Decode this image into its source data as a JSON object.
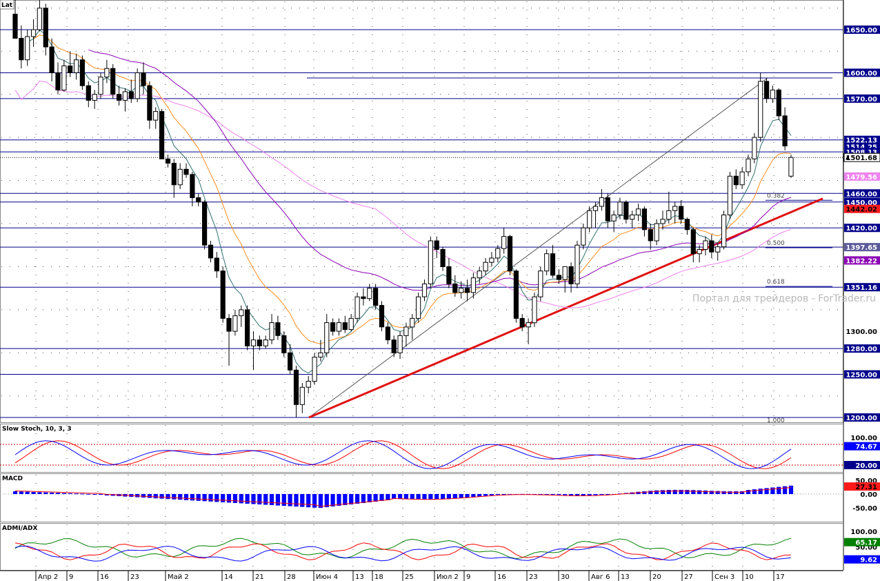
{
  "symbol_label": "Lat",
  "watermark": "Портал для трейдеров - ForTrader.ru",
  "colors": {
    "background": "#ffffff",
    "grid": "#444444",
    "hline": "#00008b",
    "candle_up_fill": "#ffffff",
    "candle_down_fill": "#000000",
    "ma_fast": "#2e6e6e",
    "ma_mid": "#ff8c1a",
    "ma_slow": "#8b00b5",
    "ma_pink": "#ee82ee",
    "trendline": "#e01010",
    "fib_line": "#222222",
    "stoch_main": "#0000ff",
    "stoch_signal": "#ff0000",
    "macd_hist": "#0000ff",
    "macd_signal": "#ff0000",
    "adx_plus": "#008000",
    "adx_minus": "#ff0000",
    "adx_line": "#0000ff"
  },
  "chart_data": {
    "type": "candlestick",
    "x_ticks": [
      "Апр 2",
      "9",
      "16",
      "23",
      "Май 2",
      "14",
      "21",
      "28",
      "Июн 4",
      "13",
      "18",
      "25",
      "Июл 2",
      "9",
      "16",
      "23",
      "30",
      "Авг 6",
      "13",
      "20",
      "27",
      "Сен 3",
      "10",
      "17"
    ],
    "price_axis": {
      "min": 1200,
      "max": 1680,
      "tick_labels": [
        "1200.00",
        "1250.00",
        "1280.00",
        "1300.00",
        "1351.16",
        "1397.65",
        "1420.00",
        "1442.02",
        "1450.00",
        "1460.00",
        "1479.56",
        "1501.68",
        "1508.13",
        "1514.25",
        "1522.13",
        "1570.00",
        "1600.00",
        "1650.00"
      ],
      "horizontal_levels": [
        1650,
        1600,
        1570,
        1522.13,
        1508.13,
        1460,
        1450,
        1420,
        1397.65,
        1351.16,
        1280,
        1250,
        1200
      ],
      "current_price": "1501.68",
      "badges": [
        {
          "label": "1479.56",
          "value": 1479.56,
          "color": "#ee82ee",
          "text_color": "#ffffff"
        },
        {
          "label": "1442.02",
          "value": 1442.02,
          "color": "#ff1a1a",
          "text_color": "#000000"
        },
        {
          "label": "1397.65",
          "value": 1397.65,
          "color": "#5a5a9a",
          "text_color": "#ffffff"
        },
        {
          "label": "1382.22",
          "value": 1382.22,
          "color": "#8b00b5",
          "text_color": "#ffffff"
        }
      ]
    },
    "fibonacci": {
      "levels": [
        {
          "label": "0.382",
          "value": 1452
        },
        {
          "label": "0.500",
          "value": 1397
        },
        {
          "label": "0.618",
          "value": 1352
        },
        {
          "label": "1.000",
          "value": 1200
        }
      ]
    },
    "candles": [
      {
        "o": 1668,
        "h": 1690,
        "l": 1640,
        "c": 1640
      },
      {
        "o": 1640,
        "h": 1655,
        "l": 1605,
        "c": 1615
      },
      {
        "o": 1615,
        "h": 1650,
        "l": 1608,
        "c": 1642
      },
      {
        "o": 1642,
        "h": 1662,
        "l": 1630,
        "c": 1650
      },
      {
        "o": 1650,
        "h": 1685,
        "l": 1648,
        "c": 1675
      },
      {
        "o": 1675,
        "h": 1680,
        "l": 1620,
        "c": 1630
      },
      {
        "o": 1630,
        "h": 1640,
        "l": 1590,
        "c": 1600
      },
      {
        "o": 1600,
        "h": 1612,
        "l": 1575,
        "c": 1580
      },
      {
        "o": 1580,
        "h": 1615,
        "l": 1578,
        "c": 1608
      },
      {
        "o": 1608,
        "h": 1625,
        "l": 1595,
        "c": 1600
      },
      {
        "o": 1600,
        "h": 1622,
        "l": 1592,
        "c": 1615
      },
      {
        "o": 1615,
        "h": 1620,
        "l": 1580,
        "c": 1585
      },
      {
        "o": 1585,
        "h": 1590,
        "l": 1560,
        "c": 1568
      },
      {
        "o": 1568,
        "h": 1580,
        "l": 1558,
        "c": 1575
      },
      {
        "o": 1575,
        "h": 1600,
        "l": 1570,
        "c": 1595
      },
      {
        "o": 1595,
        "h": 1615,
        "l": 1588,
        "c": 1605
      },
      {
        "o": 1605,
        "h": 1610,
        "l": 1570,
        "c": 1575
      },
      {
        "o": 1575,
        "h": 1585,
        "l": 1562,
        "c": 1568
      },
      {
        "o": 1568,
        "h": 1582,
        "l": 1555,
        "c": 1578
      },
      {
        "o": 1578,
        "h": 1592,
        "l": 1565,
        "c": 1570
      },
      {
        "o": 1570,
        "h": 1605,
        "l": 1566,
        "c": 1600
      },
      {
        "o": 1600,
        "h": 1612,
        "l": 1575,
        "c": 1585
      },
      {
        "o": 1585,
        "h": 1590,
        "l": 1535,
        "c": 1545
      },
      {
        "o": 1545,
        "h": 1560,
        "l": 1535,
        "c": 1555
      },
      {
        "o": 1555,
        "h": 1558,
        "l": 1500,
        "c": 1500
      },
      {
        "o": 1500,
        "h": 1505,
        "l": 1490,
        "c": 1495
      },
      {
        "o": 1495,
        "h": 1500,
        "l": 1455,
        "c": 1470
      },
      {
        "o": 1470,
        "h": 1495,
        "l": 1465,
        "c": 1488
      },
      {
        "o": 1488,
        "h": 1495,
        "l": 1478,
        "c": 1482
      },
      {
        "o": 1482,
        "h": 1485,
        "l": 1445,
        "c": 1455
      },
      {
        "o": 1455,
        "h": 1460,
        "l": 1445,
        "c": 1450
      },
      {
        "o": 1450,
        "h": 1452,
        "l": 1395,
        "c": 1400
      },
      {
        "o": 1400,
        "h": 1405,
        "l": 1380,
        "c": 1385
      },
      {
        "o": 1385,
        "h": 1392,
        "l": 1362,
        "c": 1370
      },
      {
        "o": 1370,
        "h": 1375,
        "l": 1310,
        "c": 1315
      },
      {
        "o": 1315,
        "h": 1320,
        "l": 1260,
        "c": 1300
      },
      {
        "o": 1300,
        "h": 1325,
        "l": 1295,
        "c": 1318
      },
      {
        "o": 1318,
        "h": 1330,
        "l": 1305,
        "c": 1325
      },
      {
        "o": 1325,
        "h": 1330,
        "l": 1278,
        "c": 1283
      },
      {
        "o": 1283,
        "h": 1300,
        "l": 1255,
        "c": 1290
      },
      {
        "o": 1290,
        "h": 1295,
        "l": 1278,
        "c": 1283
      },
      {
        "o": 1283,
        "h": 1295,
        "l": 1280,
        "c": 1290
      },
      {
        "o": 1290,
        "h": 1320,
        "l": 1285,
        "c": 1310
      },
      {
        "o": 1310,
        "h": 1318,
        "l": 1290,
        "c": 1295
      },
      {
        "o": 1295,
        "h": 1300,
        "l": 1270,
        "c": 1275
      },
      {
        "o": 1275,
        "h": 1285,
        "l": 1250,
        "c": 1255
      },
      {
        "o": 1255,
        "h": 1260,
        "l": 1200,
        "c": 1215
      },
      {
        "o": 1215,
        "h": 1240,
        "l": 1205,
        "c": 1235
      },
      {
        "o": 1235,
        "h": 1248,
        "l": 1228,
        "c": 1242
      },
      {
        "o": 1242,
        "h": 1275,
        "l": 1238,
        "c": 1270
      },
      {
        "o": 1270,
        "h": 1290,
        "l": 1265,
        "c": 1275
      },
      {
        "o": 1275,
        "h": 1320,
        "l": 1270,
        "c": 1310
      },
      {
        "o": 1310,
        "h": 1315,
        "l": 1295,
        "c": 1300
      },
      {
        "o": 1300,
        "h": 1315,
        "l": 1295,
        "c": 1310
      },
      {
        "o": 1310,
        "h": 1318,
        "l": 1298,
        "c": 1302
      },
      {
        "o": 1302,
        "h": 1320,
        "l": 1300,
        "c": 1315
      },
      {
        "o": 1315,
        "h": 1345,
        "l": 1310,
        "c": 1340
      },
      {
        "o": 1340,
        "h": 1350,
        "l": 1330,
        "c": 1338
      },
      {
        "o": 1338,
        "h": 1355,
        "l": 1335,
        "c": 1350
      },
      {
        "o": 1350,
        "h": 1355,
        "l": 1325,
        "c": 1330
      },
      {
        "o": 1330,
        "h": 1335,
        "l": 1300,
        "c": 1305
      },
      {
        "o": 1305,
        "h": 1310,
        "l": 1285,
        "c": 1290
      },
      {
        "o": 1290,
        "h": 1295,
        "l": 1270,
        "c": 1275
      },
      {
        "o": 1275,
        "h": 1300,
        "l": 1268,
        "c": 1295
      },
      {
        "o": 1295,
        "h": 1310,
        "l": 1282,
        "c": 1305
      },
      {
        "o": 1305,
        "h": 1320,
        "l": 1290,
        "c": 1315
      },
      {
        "o": 1315,
        "h": 1345,
        "l": 1310,
        "c": 1340
      },
      {
        "o": 1340,
        "h": 1360,
        "l": 1335,
        "c": 1355
      },
      {
        "o": 1355,
        "h": 1410,
        "l": 1350,
        "c": 1405
      },
      {
        "o": 1405,
        "h": 1410,
        "l": 1385,
        "c": 1395
      },
      {
        "o": 1395,
        "h": 1398,
        "l": 1370,
        "c": 1375
      },
      {
        "o": 1375,
        "h": 1385,
        "l": 1350,
        "c": 1355
      },
      {
        "o": 1355,
        "h": 1365,
        "l": 1340,
        "c": 1345
      },
      {
        "o": 1345,
        "h": 1358,
        "l": 1338,
        "c": 1350
      },
      {
        "o": 1350,
        "h": 1360,
        "l": 1335,
        "c": 1345
      },
      {
        "o": 1345,
        "h": 1368,
        "l": 1338,
        "c": 1362
      },
      {
        "o": 1362,
        "h": 1375,
        "l": 1355,
        "c": 1370
      },
      {
        "o": 1370,
        "h": 1385,
        "l": 1365,
        "c": 1380
      },
      {
        "o": 1380,
        "h": 1392,
        "l": 1375,
        "c": 1385
      },
      {
        "o": 1385,
        "h": 1400,
        "l": 1380,
        "c": 1396
      },
      {
        "o": 1396,
        "h": 1420,
        "l": 1390,
        "c": 1410
      },
      {
        "o": 1410,
        "h": 1412,
        "l": 1365,
        "c": 1370
      },
      {
        "o": 1370,
        "h": 1372,
        "l": 1310,
        "c": 1315
      },
      {
        "o": 1315,
        "h": 1320,
        "l": 1300,
        "c": 1305
      },
      {
        "o": 1305,
        "h": 1315,
        "l": 1285,
        "c": 1310
      },
      {
        "o": 1310,
        "h": 1345,
        "l": 1305,
        "c": 1340
      },
      {
        "o": 1340,
        "h": 1375,
        "l": 1335,
        "c": 1370
      },
      {
        "o": 1370,
        "h": 1395,
        "l": 1365,
        "c": 1390
      },
      {
        "o": 1390,
        "h": 1400,
        "l": 1362,
        "c": 1365
      },
      {
        "o": 1365,
        "h": 1372,
        "l": 1355,
        "c": 1360
      },
      {
        "o": 1360,
        "h": 1372,
        "l": 1345,
        "c": 1375
      },
      {
        "o": 1375,
        "h": 1380,
        "l": 1345,
        "c": 1355
      },
      {
        "o": 1355,
        "h": 1405,
        "l": 1350,
        "c": 1400
      },
      {
        "o": 1400,
        "h": 1425,
        "l": 1395,
        "c": 1420
      },
      {
        "o": 1420,
        "h": 1445,
        "l": 1415,
        "c": 1440
      },
      {
        "o": 1440,
        "h": 1450,
        "l": 1420,
        "c": 1445
      },
      {
        "o": 1445,
        "h": 1465,
        "l": 1440,
        "c": 1455
      },
      {
        "o": 1455,
        "h": 1460,
        "l": 1420,
        "c": 1428
      },
      {
        "o": 1428,
        "h": 1440,
        "l": 1415,
        "c": 1435
      },
      {
        "o": 1435,
        "h": 1455,
        "l": 1430,
        "c": 1450
      },
      {
        "o": 1450,
        "h": 1452,
        "l": 1425,
        "c": 1430
      },
      {
        "o": 1430,
        "h": 1440,
        "l": 1420,
        "c": 1435
      },
      {
        "o": 1435,
        "h": 1448,
        "l": 1428,
        "c": 1442
      },
      {
        "o": 1442,
        "h": 1445,
        "l": 1410,
        "c": 1418
      },
      {
        "o": 1418,
        "h": 1425,
        "l": 1395,
        "c": 1405
      },
      {
        "o": 1405,
        "h": 1430,
        "l": 1400,
        "c": 1425
      },
      {
        "o": 1425,
        "h": 1440,
        "l": 1418,
        "c": 1430
      },
      {
        "o": 1430,
        "h": 1462,
        "l": 1425,
        "c": 1440
      },
      {
        "o": 1440,
        "h": 1450,
        "l": 1425,
        "c": 1445
      },
      {
        "o": 1445,
        "h": 1452,
        "l": 1425,
        "c": 1430
      },
      {
        "o": 1430,
        "h": 1432,
        "l": 1412,
        "c": 1418
      },
      {
        "o": 1418,
        "h": 1420,
        "l": 1380,
        "c": 1390
      },
      {
        "o": 1390,
        "h": 1400,
        "l": 1380,
        "c": 1395
      },
      {
        "o": 1395,
        "h": 1410,
        "l": 1388,
        "c": 1405
      },
      {
        "o": 1405,
        "h": 1412,
        "l": 1385,
        "c": 1392
      },
      {
        "o": 1392,
        "h": 1402,
        "l": 1382,
        "c": 1398
      },
      {
        "o": 1398,
        "h": 1440,
        "l": 1395,
        "c": 1435
      },
      {
        "o": 1435,
        "h": 1485,
        "l": 1430,
        "c": 1480
      },
      {
        "o": 1480,
        "h": 1488,
        "l": 1465,
        "c": 1470
      },
      {
        "o": 1470,
        "h": 1490,
        "l": 1465,
        "c": 1485
      },
      {
        "o": 1485,
        "h": 1505,
        "l": 1480,
        "c": 1500
      },
      {
        "o": 1500,
        "h": 1530,
        "l": 1495,
        "c": 1525
      },
      {
        "o": 1525,
        "h": 1600,
        "l": 1520,
        "c": 1590
      },
      {
        "o": 1590,
        "h": 1594,
        "l": 1565,
        "c": 1570
      },
      {
        "o": 1570,
        "h": 1585,
        "l": 1565,
        "c": 1580
      },
      {
        "o": 1580,
        "h": 1582,
        "l": 1545,
        "c": 1550
      },
      {
        "o": 1550,
        "h": 1560,
        "l": 1510,
        "c": 1515
      },
      {
        "o": 1480,
        "h": 1505,
        "l": 1478,
        "c": 1501.68
      }
    ],
    "stoch": {
      "name": "Slow Stoch, 10, 3, 3",
      "tick_labels": [
        "100.00",
        "74.67",
        "20.00"
      ],
      "badge_value": "74.67",
      "levels": [
        80,
        20
      ]
    },
    "macd": {
      "name": "MACD",
      "tick_labels": [
        "50.00",
        "0.00",
        "-50.00"
      ],
      "badge_value": "27.31"
    },
    "adx": {
      "name": "ADMI/ADX",
      "tick_labels": [
        "100.00",
        "50.00",
        "9.62"
      ],
      "badge_values": [
        "65.17",
        "9.62"
      ]
    }
  }
}
